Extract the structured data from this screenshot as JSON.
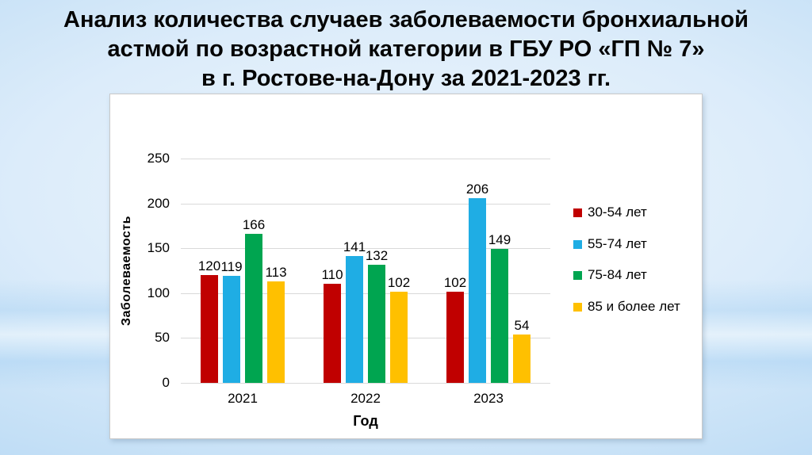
{
  "slide": {
    "title_lines": [
      "Анализ количества случаев заболеваемости бронхиальной",
      "астмой по возрастной категории в ГБУ РО «ГП № 7»",
      "в г. Ростове-на-Дону за 2021-2023 гг."
    ]
  },
  "chart_data": {
    "type": "bar",
    "categories": [
      "2021",
      "2022",
      "2023"
    ],
    "series": [
      {
        "name": "30-54 лет",
        "color": "#C00000",
        "values": [
          120,
          110,
          102
        ]
      },
      {
        "name": "55-74 лет",
        "color": "#1FADE4",
        "values": [
          119,
          141,
          206
        ]
      },
      {
        "name": "75-84 лет",
        "color": "#00A550",
        "values": [
          166,
          132,
          149
        ]
      },
      {
        "name": "85 и более лет",
        "color": "#FFC000",
        "values": [
          113,
          102,
          54
        ]
      }
    ],
    "title": "",
    "xlabel": "Год",
    "ylabel": "Заболеваемость",
    "yticks": [
      0,
      50,
      100,
      150,
      200,
      250
    ],
    "ylim": [
      0,
      250
    ],
    "grid": true,
    "legend_position": "right",
    "data_labels": true,
    "colors": {
      "gridline": "#d9d9d9",
      "panel_bg": "#ffffff",
      "text": "#000000"
    }
  }
}
